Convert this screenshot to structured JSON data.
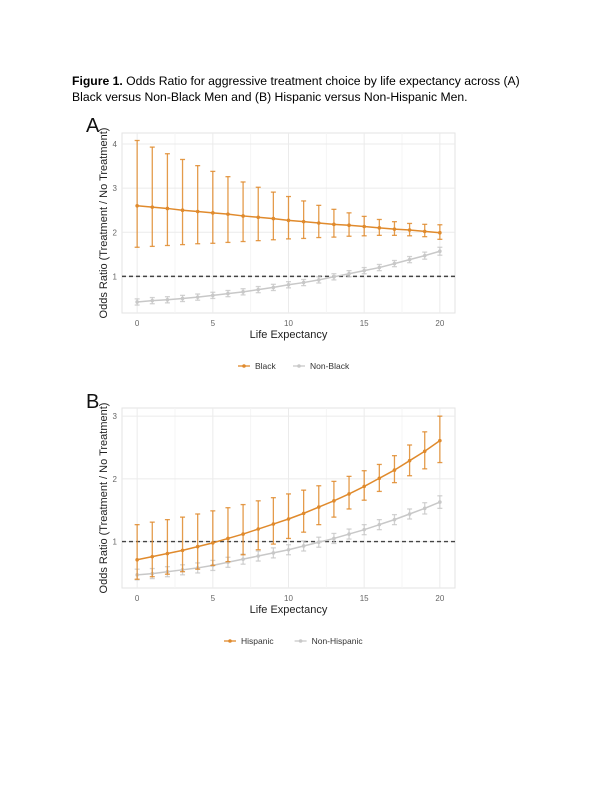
{
  "caption": {
    "label": "Figure 1.",
    "text": " Odds Ratio for aggressive treatment choice by life expectancy across (A) Black versus Non-Black Men and (B) Hispanic versus Non-Hispanic Men."
  },
  "colors": {
    "primary": "#e08a2c",
    "secondary": "#c8c8c8",
    "reference": "#444444"
  },
  "chart_data": [
    {
      "type": "line",
      "panel": "A",
      "xlabel": "Life Expectancy",
      "ylabel": "Odds Ratio (Treatment / No Treatment)",
      "xlim": [
        -1,
        21
      ],
      "ylim": [
        0.17,
        4.25
      ],
      "xticks": [
        0,
        5,
        10,
        15,
        20
      ],
      "yticks": [
        1,
        2,
        3,
        4
      ],
      "reference_line": 1,
      "grid": true,
      "legend_position": "bottom",
      "x": [
        0,
        1,
        2,
        3,
        4,
        5,
        6,
        7,
        8,
        9,
        10,
        11,
        12,
        13,
        14,
        15,
        16,
        17,
        18,
        19,
        20
      ],
      "series": [
        {
          "name": "Black",
          "color": "#e08a2c",
          "values": [
            2.6,
            2.57,
            2.54,
            2.5,
            2.47,
            2.44,
            2.41,
            2.37,
            2.34,
            2.31,
            2.27,
            2.24,
            2.21,
            2.18,
            2.16,
            2.13,
            2.1,
            2.07,
            2.05,
            2.02,
            1.99
          ],
          "upper": [
            4.08,
            3.93,
            3.78,
            3.65,
            3.51,
            3.38,
            3.26,
            3.14,
            3.02,
            2.91,
            2.81,
            2.71,
            2.61,
            2.52,
            2.44,
            2.36,
            2.29,
            2.24,
            2.2,
            2.18,
            2.17
          ],
          "lower": [
            1.66,
            1.68,
            1.7,
            1.72,
            1.74,
            1.75,
            1.77,
            1.79,
            1.81,
            1.83,
            1.85,
            1.86,
            1.88,
            1.89,
            1.91,
            1.92,
            1.93,
            1.93,
            1.92,
            1.9,
            1.84
          ]
        },
        {
          "name": "Non-Black",
          "color": "#c8c8c8",
          "values": [
            0.42,
            0.45,
            0.47,
            0.5,
            0.53,
            0.57,
            0.61,
            0.65,
            0.7,
            0.75,
            0.81,
            0.86,
            0.92,
            0.99,
            1.06,
            1.13,
            1.2,
            1.29,
            1.38,
            1.47,
            1.57
          ],
          "upper": [
            0.49,
            0.52,
            0.54,
            0.57,
            0.6,
            0.64,
            0.68,
            0.72,
            0.77,
            0.82,
            0.88,
            0.93,
            0.99,
            1.06,
            1.13,
            1.2,
            1.27,
            1.36,
            1.45,
            1.55,
            1.66
          ],
          "lower": [
            0.35,
            0.38,
            0.4,
            0.43,
            0.46,
            0.5,
            0.54,
            0.58,
            0.63,
            0.68,
            0.74,
            0.79,
            0.85,
            0.92,
            0.99,
            1.06,
            1.13,
            1.22,
            1.31,
            1.39,
            1.48
          ]
        }
      ]
    },
    {
      "type": "line",
      "panel": "B",
      "xlabel": "Life Expectancy",
      "ylabel": "Odds Ratio (Treatment / No Treatment)",
      "xlim": [
        -1,
        21
      ],
      "ylim": [
        0.26,
        3.13
      ],
      "xticks": [
        0,
        5,
        10,
        15,
        20
      ],
      "yticks": [
        1,
        2,
        3
      ],
      "reference_line": 1,
      "grid": true,
      "legend_position": "bottom",
      "x": [
        0,
        1,
        2,
        3,
        4,
        5,
        6,
        7,
        8,
        9,
        10,
        11,
        12,
        13,
        14,
        15,
        16,
        17,
        18,
        19,
        20
      ],
      "series": [
        {
          "name": "Hispanic",
          "color": "#e08a2c",
          "values": [
            0.71,
            0.76,
            0.81,
            0.86,
            0.92,
            0.98,
            1.05,
            1.12,
            1.2,
            1.28,
            1.36,
            1.45,
            1.55,
            1.65,
            1.76,
            1.88,
            2.01,
            2.14,
            2.29,
            2.44,
            2.61
          ],
          "upper": [
            1.27,
            1.31,
            1.35,
            1.39,
            1.44,
            1.49,
            1.54,
            1.59,
            1.65,
            1.7,
            1.76,
            1.82,
            1.89,
            1.96,
            2.04,
            2.13,
            2.23,
            2.37,
            2.54,
            2.75,
            3.0
          ],
          "lower": [
            0.4,
            0.44,
            0.48,
            0.52,
            0.56,
            0.62,
            0.68,
            0.79,
            0.87,
            0.96,
            1.05,
            1.15,
            1.27,
            1.39,
            1.52,
            1.66,
            1.8,
            1.94,
            2.05,
            2.16,
            2.26
          ]
        },
        {
          "name": "Non-Hispanic",
          "color": "#c8c8c8",
          "values": [
            0.47,
            0.49,
            0.52,
            0.55,
            0.58,
            0.62,
            0.67,
            0.72,
            0.77,
            0.82,
            0.87,
            0.93,
            0.99,
            1.05,
            1.12,
            1.19,
            1.27,
            1.35,
            1.44,
            1.53,
            1.63
          ],
          "upper": [
            0.56,
            0.57,
            0.6,
            0.63,
            0.66,
            0.7,
            0.75,
            0.8,
            0.85,
            0.9,
            0.95,
            1.01,
            1.07,
            1.13,
            1.2,
            1.27,
            1.35,
            1.43,
            1.52,
            1.62,
            1.73
          ],
          "lower": [
            0.39,
            0.41,
            0.44,
            0.47,
            0.5,
            0.54,
            0.59,
            0.64,
            0.69,
            0.74,
            0.79,
            0.85,
            0.91,
            0.97,
            1.04,
            1.11,
            1.19,
            1.27,
            1.36,
            1.44,
            1.53
          ]
        }
      ]
    }
  ]
}
